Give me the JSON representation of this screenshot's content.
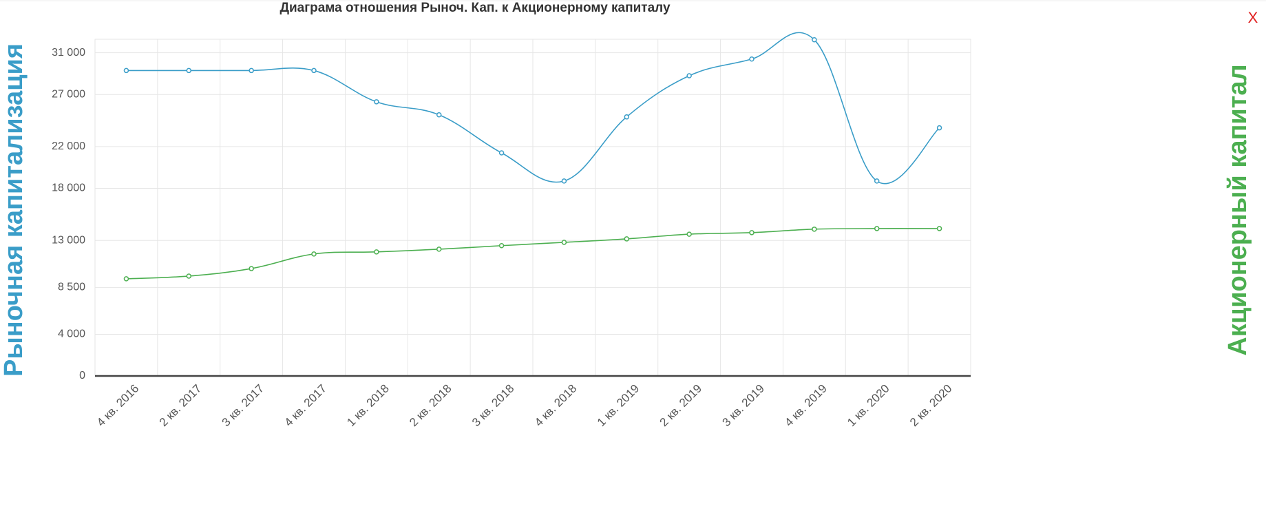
{
  "chart_data": {
    "type": "line",
    "title": "Диаграма отношения Рыноч. Кап. к Акционерному капиталу",
    "close_label": "X",
    "categories": [
      "4 кв. 2016",
      "2 кв. 2017",
      "3 кв. 2017",
      "4 кв. 2017",
      "1 кв. 2018",
      "2 кв. 2018",
      "3 кв. 2018",
      "4 кв. 2018",
      "1 кв. 2019",
      "2 кв. 2019",
      "3 кв. 2019",
      "4 кв. 2019",
      "1 кв. 2020",
      "2 кв. 2020"
    ],
    "series": [
      {
        "name": "Рыночная капитализация",
        "color": "#3a9dc8",
        "values": [
          29300,
          29300,
          29300,
          29300,
          26300,
          25050,
          21400,
          18700,
          24850,
          28800,
          30400,
          32250,
          18700,
          23800
        ]
      },
      {
        "name": "Акционерный капитал",
        "color": "#4caf50",
        "values": [
          9320,
          9580,
          10300,
          11700,
          11900,
          12160,
          12500,
          12820,
          13150,
          13600,
          13750,
          14080,
          14140,
          14140
        ]
      }
    ],
    "ylim": [
      0,
      32300
    ],
    "yticks": [
      0,
      {
        "value": 4000,
        "label": "4 000"
      },
      {
        "value": 8500,
        "label": "8 500"
      },
      {
        "value": 13000,
        "label": "13 000"
      },
      {
        "value": 18000,
        "label": "18 000"
      },
      {
        "value": 22000,
        "label": "22 000"
      },
      {
        "value": 27000,
        "label": "27 000"
      },
      {
        "value": 31000,
        "label": "31 000"
      }
    ],
    "grid": true
  }
}
